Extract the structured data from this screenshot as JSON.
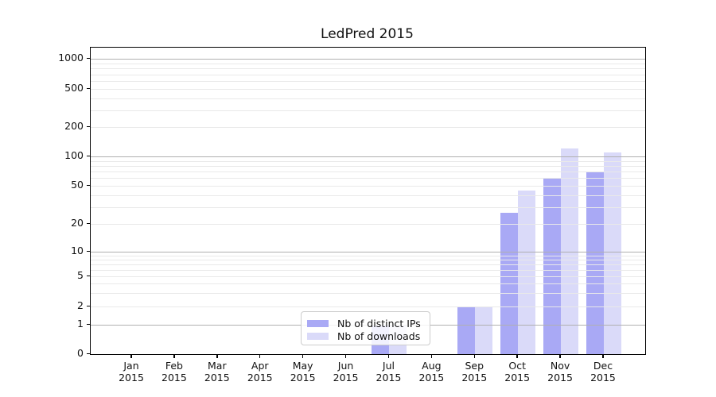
{
  "title": "LedPred 2015",
  "legend": {
    "items": [
      {
        "label": "Nb of distinct IPs",
        "color": "#a9a9f5"
      },
      {
        "label": "Nb of downloads",
        "color": "#dadaf9"
      }
    ]
  },
  "chart_data": {
    "type": "bar",
    "title": "LedPred 2015",
    "categories": [
      "Jan 2015",
      "Feb 2015",
      "Mar 2015",
      "Apr 2015",
      "May 2015",
      "Jun 2015",
      "Jul 2015",
      "Aug 2015",
      "Sep 2015",
      "Oct 2015",
      "Nov 2015",
      "Dec 2015"
    ],
    "series": [
      {
        "name": "Nb of distinct IPs",
        "color": "#a9a9f5",
        "values": [
          0,
          0,
          0,
          0,
          0,
          0,
          1,
          0,
          2,
          26,
          60,
          70
        ]
      },
      {
        "name": "Nb of downloads",
        "color": "#dadaf9",
        "values": [
          0,
          0,
          0,
          0,
          0,
          0,
          1,
          0,
          2,
          45,
          120,
          110
        ]
      }
    ],
    "xlabel": "",
    "ylabel": "",
    "yscale": "symlog",
    "yticks": [
      0,
      1,
      2,
      5,
      10,
      20,
      50,
      100,
      200,
      500,
      1000
    ],
    "ylim": [
      0,
      1400
    ],
    "grid": "horizontal major and minor",
    "legend_position": "inside lower-center-left",
    "colors": {
      "major_gridline": "#b0b0b0",
      "minor_gridline": "#e9e9e9",
      "axis": "#000000"
    }
  }
}
